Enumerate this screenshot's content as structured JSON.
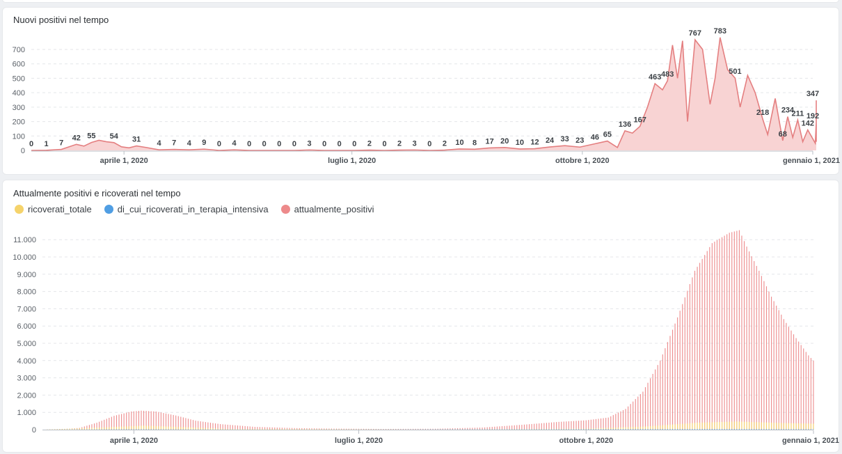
{
  "colors": {
    "line": "#e47f80",
    "area": "#f8d3d3",
    "ricoverati": "#f5d36b",
    "intensiva": "#509ee3",
    "positivi": "#ed8a8b"
  },
  "chart1": {
    "title": "Nuovi positivi nel tempo",
    "yticks": [
      "0",
      "100",
      "200",
      "300",
      "400",
      "500",
      "600",
      "700"
    ],
    "xticks": [
      "aprile 1, 2020",
      "luglio 1, 2020",
      "ottobre 1, 2020",
      "gennaio 1, 2021"
    ]
  },
  "chart2": {
    "title": "Attualmente positivi e ricoverati nel tempo",
    "legend": [
      {
        "name": "ricoverati_totale",
        "color": "#f5d36b"
      },
      {
        "name": "di_cui_ricoverati_in_terapia_intensiva",
        "color": "#509ee3"
      },
      {
        "name": "attualmente_positivi",
        "color": "#ed8a8b"
      }
    ],
    "yticks": [
      "0",
      "1.000",
      "2.000",
      "3.000",
      "4.000",
      "5.000",
      "6.000",
      "7.000",
      "8.000",
      "9.000",
      "10.000",
      "11.000"
    ],
    "xticks": [
      "aprile 1, 2020",
      "luglio 1, 2020",
      "ottobre 1, 2020",
      "gennaio 1, 2021"
    ]
  },
  "chart_data": [
    {
      "type": "area",
      "title": "Nuovi positivi nel tempo",
      "xlabel": "",
      "ylabel": "",
      "x_range": [
        "2020-02-24",
        "2021-01-01"
      ],
      "ylim": [
        0,
        800
      ],
      "grid": true,
      "series": [
        {
          "values": [
            {
              "x": "2020-02-24",
              "y": 0
            },
            {
              "x": "2020-03-01",
              "y": 1
            },
            {
              "x": "2020-03-07",
              "y": 7
            },
            {
              "x": "2020-03-13",
              "y": 42
            },
            {
              "x": "2020-03-16",
              "y": 30
            },
            {
              "x": "2020-03-19",
              "y": 55
            },
            {
              "x": "2020-03-22",
              "y": 70
            },
            {
              "x": "2020-03-25",
              "y": 60
            },
            {
              "x": "2020-03-28",
              "y": 54
            },
            {
              "x": "2020-03-31",
              "y": 25
            },
            {
              "x": "2020-04-03",
              "y": 18
            },
            {
              "x": "2020-04-06",
              "y": 31
            },
            {
              "x": "2020-04-10",
              "y": 20
            },
            {
              "x": "2020-04-15",
              "y": 4
            },
            {
              "x": "2020-04-21",
              "y": 7
            },
            {
              "x": "2020-04-27",
              "y": 4
            },
            {
              "x": "2020-05-03",
              "y": 9
            },
            {
              "x": "2020-05-09",
              "y": 0
            },
            {
              "x": "2020-05-15",
              "y": 4
            },
            {
              "x": "2020-05-21",
              "y": 0
            },
            {
              "x": "2020-05-27",
              "y": 0
            },
            {
              "x": "2020-06-02",
              "y": 0
            },
            {
              "x": "2020-06-08",
              "y": 0
            },
            {
              "x": "2020-06-14",
              "y": 3
            },
            {
              "x": "2020-06-20",
              "y": 0
            },
            {
              "x": "2020-06-26",
              "y": 0
            },
            {
              "x": "2020-07-02",
              "y": 0
            },
            {
              "x": "2020-07-08",
              "y": 2
            },
            {
              "x": "2020-07-14",
              "y": 0
            },
            {
              "x": "2020-07-20",
              "y": 2
            },
            {
              "x": "2020-07-26",
              "y": 3
            },
            {
              "x": "2020-08-01",
              "y": 0
            },
            {
              "x": "2020-08-07",
              "y": 2
            },
            {
              "x": "2020-08-13",
              "y": 10
            },
            {
              "x": "2020-08-19",
              "y": 8
            },
            {
              "x": "2020-08-25",
              "y": 17
            },
            {
              "x": "2020-08-31",
              "y": 20
            },
            {
              "x": "2020-09-06",
              "y": 10
            },
            {
              "x": "2020-09-12",
              "y": 12
            },
            {
              "x": "2020-09-18",
              "y": 24
            },
            {
              "x": "2020-09-24",
              "y": 33
            },
            {
              "x": "2020-09-30",
              "y": 23
            },
            {
              "x": "2020-10-06",
              "y": 46
            },
            {
              "x": "2020-10-11",
              "y": 65
            },
            {
              "x": "2020-10-15",
              "y": 20
            },
            {
              "x": "2020-10-18",
              "y": 136
            },
            {
              "x": "2020-10-21",
              "y": 120
            },
            {
              "x": "2020-10-24",
              "y": 167
            },
            {
              "x": "2020-10-27",
              "y": 300
            },
            {
              "x": "2020-10-30",
              "y": 463
            },
            {
              "x": "2020-11-02",
              "y": 420
            },
            {
              "x": "2020-11-04",
              "y": 483
            },
            {
              "x": "2020-11-06",
              "y": 730
            },
            {
              "x": "2020-11-08",
              "y": 500
            },
            {
              "x": "2020-11-10",
              "y": 760
            },
            {
              "x": "2020-11-12",
              "y": 200
            },
            {
              "x": "2020-11-15",
              "y": 767
            },
            {
              "x": "2020-11-18",
              "y": 700
            },
            {
              "x": "2020-11-21",
              "y": 320
            },
            {
              "x": "2020-11-23",
              "y": 500
            },
            {
              "x": "2020-11-25",
              "y": 783
            },
            {
              "x": "2020-11-28",
              "y": 560
            },
            {
              "x": "2020-12-01",
              "y": 501
            },
            {
              "x": "2020-12-03",
              "y": 300
            },
            {
              "x": "2020-12-06",
              "y": 520
            },
            {
              "x": "2020-12-09",
              "y": 400
            },
            {
              "x": "2020-12-12",
              "y": 218
            },
            {
              "x": "2020-12-14",
              "y": 110
            },
            {
              "x": "2020-12-17",
              "y": 360
            },
            {
              "x": "2020-12-20",
              "y": 68
            },
            {
              "x": "2020-12-22",
              "y": 234
            },
            {
              "x": "2020-12-24",
              "y": 90
            },
            {
              "x": "2020-12-26",
              "y": 211
            },
            {
              "x": "2020-12-28",
              "y": 60
            },
            {
              "x": "2020-12-30",
              "y": 142
            },
            {
              "x": "2021-01-02",
              "y": 50
            },
            {
              "x": "2021-01-05",
              "y": 192
            },
            {
              "x": "2021-01-08",
              "y": 60
            },
            {
              "x": "2021-01-11",
              "y": 347
            },
            {
              "x": "2021-01-14",
              "y": 230
            },
            {
              "x": "2021-01-16",
              "y": 60
            }
          ]
        }
      ],
      "data_labels": [
        {
          "x": "2020-02-24",
          "y": 0,
          "text": "0"
        },
        {
          "x": "2020-03-01",
          "y": 1,
          "text": "1"
        },
        {
          "x": "2020-03-07",
          "y": 7,
          "text": "7"
        },
        {
          "x": "2020-03-13",
          "y": 42,
          "text": "42"
        },
        {
          "x": "2020-03-19",
          "y": 55,
          "text": "55"
        },
        {
          "x": "2020-03-28",
          "y": 54,
          "text": "54"
        },
        {
          "x": "2020-04-06",
          "y": 31,
          "text": "31"
        },
        {
          "x": "2020-04-15",
          "y": 4,
          "text": "4"
        },
        {
          "x": "2020-04-21",
          "y": 7,
          "text": "7"
        },
        {
          "x": "2020-04-27",
          "y": 4,
          "text": "4"
        },
        {
          "x": "2020-05-03",
          "y": 9,
          "text": "9"
        },
        {
          "x": "2020-05-09",
          "y": 0,
          "text": "0"
        },
        {
          "x": "2020-05-15",
          "y": 4,
          "text": "4"
        },
        {
          "x": "2020-05-21",
          "y": 0,
          "text": "0"
        },
        {
          "x": "2020-05-27",
          "y": 0,
          "text": "0"
        },
        {
          "x": "2020-06-02",
          "y": 0,
          "text": "0"
        },
        {
          "x": "2020-06-08",
          "y": 0,
          "text": "0"
        },
        {
          "x": "2020-06-14",
          "y": 3,
          "text": "3"
        },
        {
          "x": "2020-06-20",
          "y": 0,
          "text": "0"
        },
        {
          "x": "2020-06-26",
          "y": 0,
          "text": "0"
        },
        {
          "x": "2020-07-02",
          "y": 0,
          "text": "0"
        },
        {
          "x": "2020-07-08",
          "y": 2,
          "text": "2"
        },
        {
          "x": "2020-07-14",
          "y": 0,
          "text": "0"
        },
        {
          "x": "2020-07-20",
          "y": 2,
          "text": "2"
        },
        {
          "x": "2020-07-26",
          "y": 3,
          "text": "3"
        },
        {
          "x": "2020-08-01",
          "y": 0,
          "text": "0"
        },
        {
          "x": "2020-08-07",
          "y": 2,
          "text": "2"
        },
        {
          "x": "2020-08-13",
          "y": 10,
          "text": "10"
        },
        {
          "x": "2020-08-19",
          "y": 8,
          "text": "8"
        },
        {
          "x": "2020-08-25",
          "y": 17,
          "text": "17"
        },
        {
          "x": "2020-08-31",
          "y": 20,
          "text": "20"
        },
        {
          "x": "2020-09-06",
          "y": 10,
          "text": "10"
        },
        {
          "x": "2020-09-12",
          "y": 12,
          "text": "12"
        },
        {
          "x": "2020-09-18",
          "y": 24,
          "text": "24"
        },
        {
          "x": "2020-09-24",
          "y": 33,
          "text": "33"
        },
        {
          "x": "2020-09-30",
          "y": 23,
          "text": "23"
        },
        {
          "x": "2020-10-06",
          "y": 46,
          "text": "46"
        },
        {
          "x": "2020-10-11",
          "y": 65,
          "text": "65"
        },
        {
          "x": "2020-10-18",
          "y": 136,
          "text": "136"
        },
        {
          "x": "2020-10-24",
          "y": 167,
          "text": "167"
        },
        {
          "x": "2020-10-30",
          "y": 463,
          "text": "463"
        },
        {
          "x": "2020-11-04",
          "y": 483,
          "text": "483"
        },
        {
          "x": "2020-11-15",
          "y": 767,
          "text": "767"
        },
        {
          "x": "2020-11-25",
          "y": 783,
          "text": "783"
        },
        {
          "x": "2020-12-01",
          "y": 501,
          "text": "501"
        },
        {
          "x": "2020-12-12",
          "y": 218,
          "text": "218"
        },
        {
          "x": "2020-12-20",
          "y": 68,
          "text": "68"
        },
        {
          "x": "2020-12-22",
          "y": 234,
          "text": "234"
        },
        {
          "x": "2020-12-26",
          "y": 211,
          "text": "211"
        },
        {
          "x": "2020-12-30",
          "y": 142,
          "text": "142"
        },
        {
          "x": "2021-01-05",
          "y": 192,
          "text": "192"
        },
        {
          "x": "2021-01-11",
          "y": 347,
          "text": "347"
        }
      ]
    },
    {
      "type": "bar",
      "title": "Attualmente positivi e ricoverati nel tempo",
      "xlabel": "",
      "ylabel": "",
      "x_range": [
        "2020-02-24",
        "2021-01-01"
      ],
      "ylim": [
        0,
        11700
      ],
      "grid": true,
      "legend_position": "top-left",
      "series": [
        {
          "name": "attualmente_positivi",
          "points": [
            [
              "2020-02-24",
              0
            ],
            [
              "2020-03-03",
              30
            ],
            [
              "2020-03-10",
              100
            ],
            [
              "2020-03-17",
              400
            ],
            [
              "2020-03-24",
              800
            ],
            [
              "2020-03-31",
              1050
            ],
            [
              "2020-04-04",
              1100
            ],
            [
              "2020-04-10",
              1050
            ],
            [
              "2020-04-18",
              820
            ],
            [
              "2020-04-26",
              520
            ],
            [
              "2020-05-06",
              320
            ],
            [
              "2020-05-20",
              160
            ],
            [
              "2020-06-05",
              90
            ],
            [
              "2020-06-20",
              60
            ],
            [
              "2020-07-10",
              40
            ],
            [
              "2020-08-01",
              50
            ],
            [
              "2020-08-20",
              120
            ],
            [
              "2020-09-05",
              280
            ],
            [
              "2020-09-20",
              450
            ],
            [
              "2020-10-01",
              540
            ],
            [
              "2020-10-10",
              700
            ],
            [
              "2020-10-17",
              1200
            ],
            [
              "2020-10-24",
              2200
            ],
            [
              "2020-10-31",
              4000
            ],
            [
              "2020-11-07",
              6500
            ],
            [
              "2020-11-14",
              9200
            ],
            [
              "2020-11-21",
              10800
            ],
            [
              "2020-11-28",
              11400
            ],
            [
              "2020-12-02",
              11550
            ],
            [
              "2020-12-05",
              10600
            ],
            [
              "2020-12-10",
              9200
            ],
            [
              "2020-12-15",
              7700
            ],
            [
              "2020-12-20",
              6400
            ],
            [
              "2020-12-25",
              5300
            ],
            [
              "2020-12-30",
              4300
            ],
            [
              "2021-01-04",
              3550
            ],
            [
              "2021-01-10",
              3600
            ],
            [
              "2021-01-16",
              3800
            ]
          ]
        },
        {
          "name": "ricoverati_totale",
          "points": [
            [
              "2020-02-24",
              0
            ],
            [
              "2020-03-20",
              130
            ],
            [
              "2020-04-05",
              230
            ],
            [
              "2020-04-20",
              150
            ],
            [
              "2020-05-10",
              40
            ],
            [
              "2020-08-01",
              10
            ],
            [
              "2020-10-01",
              60
            ],
            [
              "2020-10-25",
              180
            ],
            [
              "2020-11-15",
              400
            ],
            [
              "2020-12-01",
              470
            ],
            [
              "2020-12-20",
              380
            ],
            [
              "2021-01-16",
              300
            ]
          ]
        },
        {
          "name": "di_cui_ricoverati_in_terapia_intensiva",
          "points": [
            [
              "2020-02-24",
              0
            ],
            [
              "2020-04-01",
              25
            ],
            [
              "2020-06-01",
              0
            ],
            [
              "2020-11-20",
              40
            ],
            [
              "2021-01-16",
              25
            ]
          ]
        }
      ]
    }
  ]
}
